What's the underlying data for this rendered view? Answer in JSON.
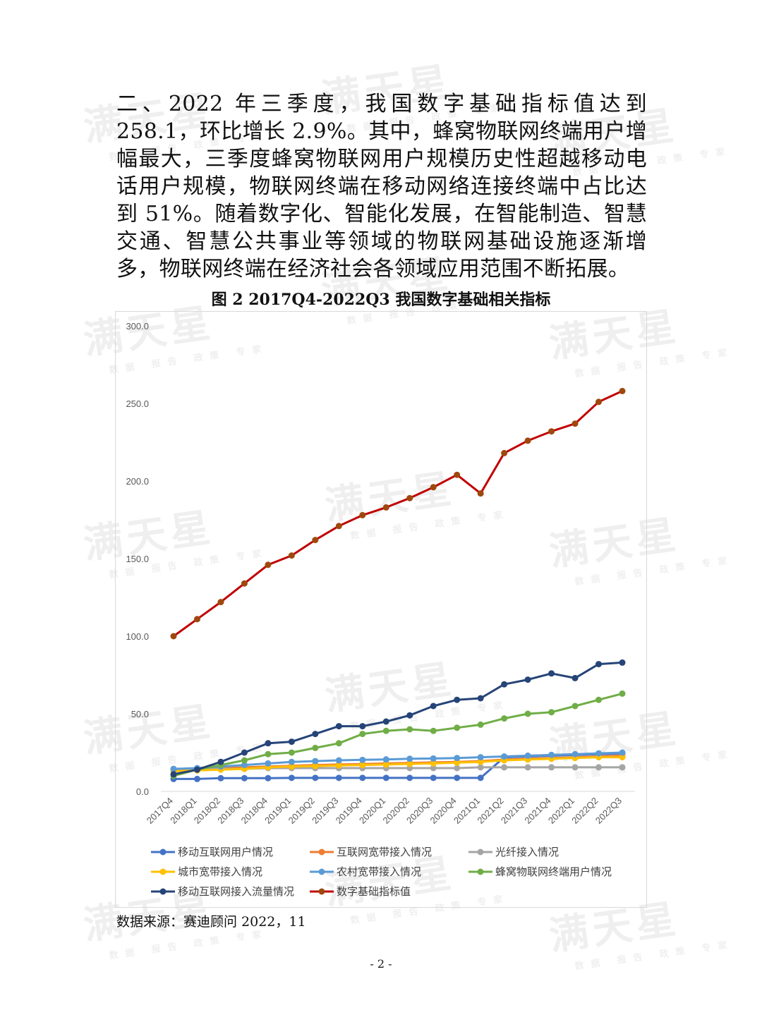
{
  "paragraph": "二、2022 年三季度，我国数字基础指标值达到 258.1，环比增长 2.9%。其中，蜂窝物联网终端用户增幅最大，三季度蜂窝物联网用户规模历史性超越移动电话用户规模，物联网终端在移动网络连接终端中占比达到 51%。随着数字化、智能化发展，在智能制造、智慧交通、智慧公共事业等领域的物联网基础设施逐渐增多，物联网终端在经济社会各领域应用范围不断拓展。",
  "chart_title": "图 2 2017Q4-2022Q3 我国数字基础相关指标",
  "source_text": "数据来源：赛迪顾问    2022，11",
  "page_number": "- 2 -",
  "watermark": {
    "main": "满天星",
    "sub": "数据 报告 政策 专家"
  },
  "chart_data": {
    "type": "line",
    "title": "图 2 2017Q4-2022Q3 我国数字基础相关指标",
    "xlabel": "",
    "ylabel": "",
    "ylim": [
      0,
      300
    ],
    "ytick_labels": [
      "0.0",
      "50.0",
      "100.0",
      "150.0",
      "200.0",
      "250.0",
      "300.0"
    ],
    "grid": false,
    "legend_position": "bottom",
    "categories": [
      "2017Q4",
      "2018Q1",
      "2018Q2",
      "2018Q3",
      "2018Q4",
      "2019Q1",
      "2019Q2",
      "2019Q3",
      "2019Q4",
      "2020Q1",
      "2020Q2",
      "2020Q3",
      "2020Q4",
      "2021Q1",
      "2021Q2",
      "2021Q3",
      "2021Q4",
      "2022Q1",
      "2022Q2",
      "2022Q3"
    ],
    "series": [
      {
        "name": "移动互联网用户情况",
        "color": "#4472C4",
        "values": [
          8,
          8,
          8.5,
          8.5,
          8.5,
          8.7,
          8.7,
          8.7,
          8.7,
          8.7,
          8.7,
          8.7,
          8.7,
          8.7,
          22,
          22.5,
          23,
          23.5,
          24,
          24.5
        ]
      },
      {
        "name": "互联网宽带接入情况",
        "color": "#ED7D31",
        "values": [
          14,
          14.5,
          15,
          15.5,
          16,
          16.5,
          17,
          17.3,
          17.6,
          18,
          18.3,
          18.7,
          19,
          19.5,
          20.5,
          21,
          21.5,
          22,
          22.5,
          23
        ]
      },
      {
        "name": "光纤接入情况",
        "color": "#A5A5A5",
        "values": [
          14,
          14,
          14.5,
          14.5,
          15,
          15,
          15,
          15,
          15,
          15,
          15,
          15,
          15,
          15.5,
          15.5,
          15.5,
          15.5,
          15.5,
          15.5,
          15.5
        ]
      },
      {
        "name": "城市宽带接入情况",
        "color": "#FFC000",
        "values": [
          13,
          13.5,
          14,
          14.5,
          15.5,
          16,
          16.3,
          16.7,
          17,
          17.3,
          17.7,
          18,
          18.5,
          19,
          20,
          20.5,
          21,
          21.5,
          22,
          22
        ]
      },
      {
        "name": "农村宽带接入情况",
        "color": "#5B9BD5",
        "values": [
          14.5,
          15,
          16,
          17,
          18,
          19,
          19.5,
          20,
          20.3,
          20.6,
          21,
          21.2,
          21.5,
          22,
          22.5,
          23,
          23.5,
          24,
          24.5,
          25
        ]
      },
      {
        "name": "蜂窝物联网终端用户情况",
        "color": "#70AD47",
        "values": [
          10,
          14,
          17,
          20,
          24,
          25,
          28,
          31,
          37,
          39,
          40,
          39,
          41,
          43,
          47,
          50,
          51,
          55,
          59,
          63
        ]
      },
      {
        "name": "移动互联网接入流量情况",
        "color": "#264478",
        "values": [
          11,
          14,
          19,
          25,
          31,
          32,
          37,
          42,
          42,
          45,
          49,
          55,
          59,
          60,
          69,
          72,
          76,
          73,
          82,
          83
        ]
      },
      {
        "name": "数字基础指标值",
        "color": "#C00000",
        "marker_color": "#9E480E",
        "values": [
          100,
          111,
          122,
          134,
          146,
          152,
          162,
          171,
          178,
          183,
          189,
          196,
          204,
          192,
          218,
          226,
          232,
          237,
          251,
          258
        ]
      }
    ]
  }
}
